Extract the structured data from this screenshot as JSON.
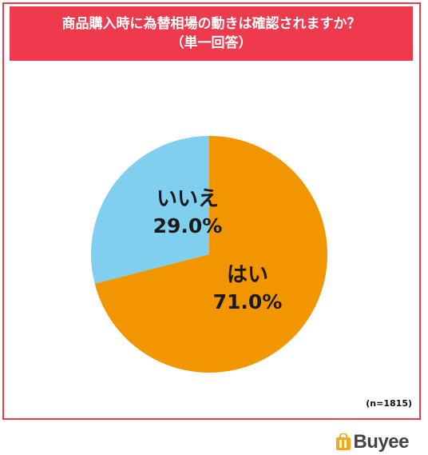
{
  "title": {
    "line1": "商品購入時に為替相場の動きは確認されますか？",
    "line2": "（単一回答）"
  },
  "sample_size": "(n=1815)",
  "brand": {
    "name": "Buyee",
    "logo_color": "#f5a623"
  },
  "colors": {
    "frame": "#ee3a4c",
    "yes": "#f29600",
    "no": "#80cfee"
  },
  "chart_data": {
    "type": "pie",
    "title": "商品購入時に為替相場の動きは確認されますか？",
    "subtitle": "（単一回答）",
    "slices": [
      {
        "label": "はい",
        "value": 71.0,
        "display": "71.0%",
        "color": "#f29600"
      },
      {
        "label": "いいえ",
        "value": 29.0,
        "display": "29.0%",
        "color": "#80cfee"
      }
    ],
    "start_angle": "12 o'clock",
    "direction": "clockwise",
    "legend": "none"
  }
}
